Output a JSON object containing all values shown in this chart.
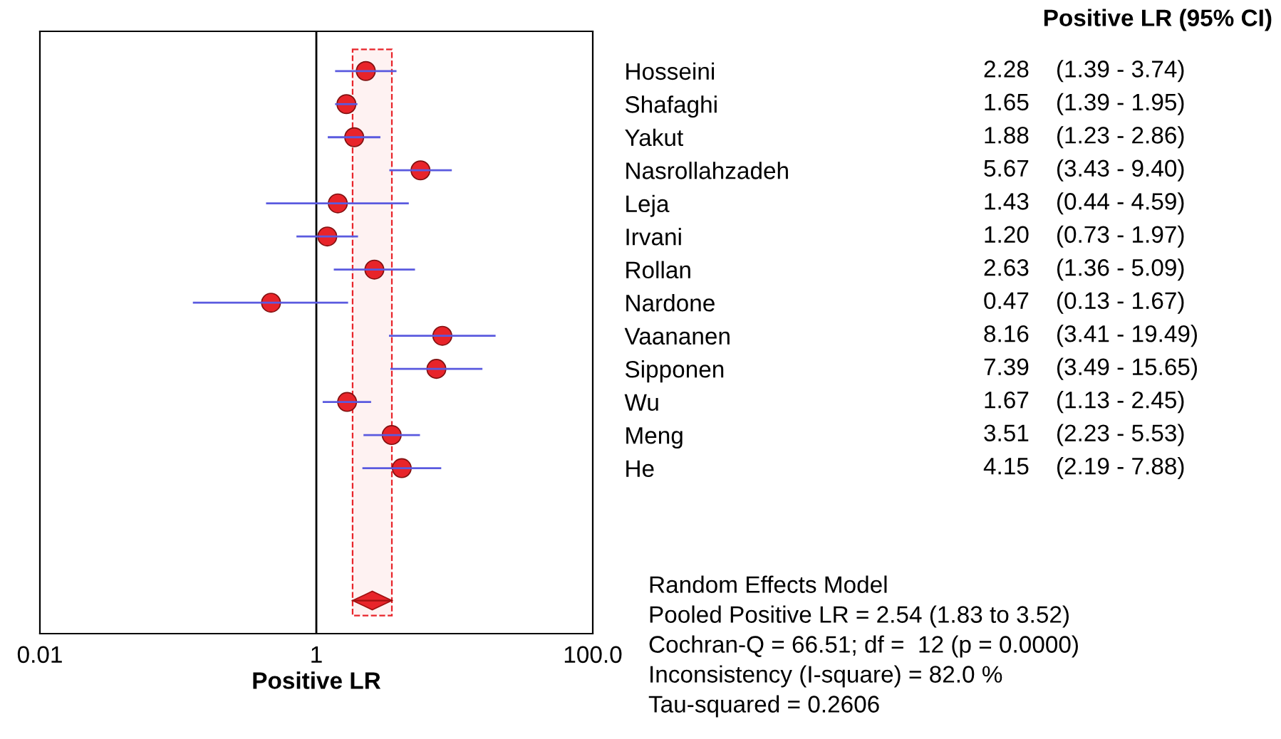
{
  "chart_data": {
    "type": "scatter",
    "orientation": "horizontal",
    "xlabel": "Positive LR",
    "log": "x",
    "xlim": [
      0.01,
      100
    ],
    "xticks": [
      0.01,
      1,
      {
        "value": 100,
        "label": "100.0"
      }
    ],
    "grid": false,
    "legend": false,
    "categories": [
      "Hosseini",
      "Shafaghi",
      "Yakut",
      "Nasrollahzadeh",
      "Leja",
      "Irvani",
      "Rollan",
      "Nardone",
      "Vaananen",
      "Sipponen",
      "Wu",
      "Meng",
      "He",
      null,
      null,
      null,
      null
    ],
    "series": [
      {
        "color": "#e8242a",
        "marker": "circle",
        "values": [
          2.28,
          1.65,
          1.88,
          5.67,
          1.43,
          1.2,
          2.63,
          0.47,
          8.16,
          7.39,
          1.67,
          3.51,
          4.15,
          null,
          null,
          null,
          null
        ],
        "errors": [
          [
            1.39,
            3.74
          ],
          [
            1.39,
            1.95
          ],
          [
            1.23,
            2.86
          ],
          [
            3.43,
            9.4
          ],
          [
            0.44,
            4.59
          ],
          [
            0.73,
            1.97
          ],
          [
            1.36,
            5.09
          ],
          [
            0.13,
            1.67
          ],
          [
            3.41,
            19.49
          ],
          [
            3.49,
            15.65
          ],
          [
            1.13,
            2.45
          ],
          [
            2.23,
            5.53
          ],
          [
            2.19,
            7.88
          ],
          null,
          null,
          null,
          null
        ]
      },
      {
        "color": "#e8242a",
        "marker": "diamond",
        "values": [
          null,
          null,
          null,
          null,
          null,
          null,
          null,
          null,
          null,
          null,
          null,
          null,
          null,
          null,
          null,
          null,
          2.54
        ],
        "errors": [
          null,
          null,
          null,
          null,
          null,
          null,
          null,
          null,
          null,
          null,
          null,
          null,
          null,
          null,
          null,
          null,
          [
            1.83,
            3.52
          ]
        ]
      }
    ],
    "ref_lines": [
      {
        "axis": "x",
        "value": 1,
        "color": "#000000",
        "line_style": "solid"
      }
    ],
    "bands": [
      {
        "axis": "x",
        "from": 1.83,
        "to": 3.52,
        "color": "#e8242a"
      }
    ],
    "annotations": [
      "Positive LR (95% CI)",
      "2.28    (1.39 - 3.74)",
      "1.65    (1.39 - 1.95)",
      "1.88    (1.23 - 2.86)",
      "5.67    (3.43 - 9.40)",
      "1.43    (0.44 - 4.59)",
      "1.20    (0.73 - 1.97)",
      "2.63    (1.36 - 5.09)",
      "0.47    (0.13 - 1.67)",
      "8.16    (3.41 - 19.49)",
      "7.39    (3.49 - 15.65)",
      "1.67    (1.13 - 2.45)",
      "3.51    (2.23 - 5.53)",
      "4.15    (2.19 - 7.88)",
      "Random Effects Model",
      "Pooled Positive LR = 2.54 (1.83 to 3.52)",
      "Cochran-Q = 66.51; df =  12 (p = 0.0000)",
      "Inconsistency (I-square) = 82.0 %",
      "Tau-squared = 0.2606"
    ]
  }
}
